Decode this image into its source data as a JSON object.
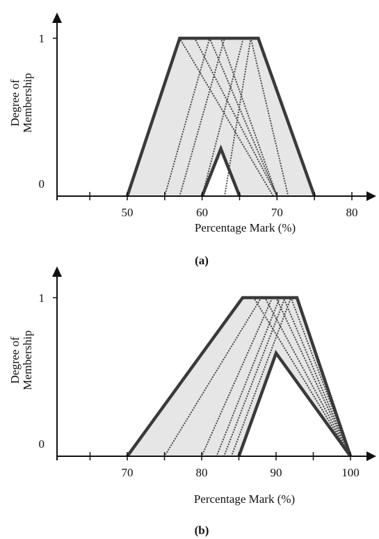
{
  "colors": {
    "fill": "#e6e6e6",
    "outline": "#3a3a3a",
    "dotted": "#4a4a4a",
    "axis": "#111111"
  },
  "chart_data": [
    {
      "type": "area",
      "panel_label": "(a)",
      "xlabel": "Percentage Mark (%)",
      "ylabel_lines": [
        "Degree of",
        "Membership"
      ],
      "x_ticks": [
        45,
        50,
        55,
        60,
        65,
        70,
        75,
        80
      ],
      "x_tick_labels": [
        {
          "x": 50,
          "label": "50"
        },
        {
          "x": 60,
          "label": "60"
        },
        {
          "x": 70,
          "label": "70"
        },
        {
          "x": 80,
          "label": "80"
        }
      ],
      "y_tick_labels": [
        {
          "y": 0,
          "label": "0"
        },
        {
          "y": 1,
          "label": "1"
        }
      ],
      "xlim": [
        40,
        84
      ],
      "ylim": [
        0,
        1.2
      ],
      "grid": false,
      "envelope_upper": [
        [
          50,
          0
        ],
        [
          57,
          1
        ],
        [
          67.5,
          1
        ],
        [
          75,
          0
        ]
      ],
      "envelope_lower": [
        [
          60,
          0
        ],
        [
          62.5,
          0.3
        ],
        [
          65,
          0
        ]
      ],
      "dotted_lines": [
        [
          [
            55,
            0
          ],
          [
            61,
            1
          ]
        ],
        [
          [
            57,
            0
          ],
          [
            63,
            1
          ]
        ],
        [
          [
            60,
            0
          ],
          [
            65.5,
            1
          ]
        ],
        [
          [
            63,
            0
          ],
          [
            66.5,
            1
          ]
        ],
        [
          [
            57,
            1
          ],
          [
            69.5,
            0
          ]
        ],
        [
          [
            59,
            1
          ],
          [
            70,
            0
          ]
        ],
        [
          [
            61,
            1
          ],
          [
            70,
            0
          ]
        ],
        [
          [
            62.5,
            1
          ],
          [
            70,
            0
          ]
        ],
        [
          [
            66.5,
            1
          ],
          [
            71.5,
            0
          ]
        ]
      ]
    },
    {
      "type": "area",
      "panel_label": "(b)",
      "xlabel": "Percentage Mark (%)",
      "ylabel_lines": [
        "Degree of",
        "Membership"
      ],
      "x_ticks": [
        65,
        70,
        75,
        80,
        85,
        90,
        95,
        100
      ],
      "x_tick_labels": [
        {
          "x": 70,
          "label": "70"
        },
        {
          "x": 80,
          "label": "80"
        },
        {
          "x": 90,
          "label": "90"
        },
        {
          "x": 100,
          "label": "100"
        }
      ],
      "y_tick_labels": [
        {
          "y": 0,
          "label": "0"
        },
        {
          "y": 1,
          "label": "1"
        }
      ],
      "xlim": [
        60,
        104
      ],
      "ylim": [
        0,
        1.2
      ],
      "grid": false,
      "envelope_upper": [
        [
          70,
          0
        ],
        [
          85.5,
          1
        ],
        [
          92.8,
          1
        ],
        [
          100,
          0
        ]
      ],
      "envelope_lower": [
        [
          85,
          0
        ],
        [
          90,
          0.65
        ],
        [
          100,
          0
        ]
      ],
      "dotted_lines": [
        [
          [
            75,
            0
          ],
          [
            88,
            1
          ]
        ],
        [
          [
            80,
            0
          ],
          [
            89.5,
            1
          ]
        ],
        [
          [
            82,
            0
          ],
          [
            90.5,
            1
          ]
        ],
        [
          [
            83,
            0
          ],
          [
            91.2,
            1
          ]
        ],
        [
          [
            84,
            0
          ],
          [
            92,
            1
          ]
        ],
        [
          [
            87,
            1
          ],
          [
            100,
            0
          ]
        ],
        [
          [
            88.5,
            1
          ],
          [
            100,
            0
          ]
        ],
        [
          [
            90,
            1
          ],
          [
            100,
            0
          ]
        ],
        [
          [
            91,
            1
          ],
          [
            100,
            0
          ]
        ],
        [
          [
            92,
            1
          ],
          [
            100,
            0
          ]
        ]
      ]
    }
  ]
}
